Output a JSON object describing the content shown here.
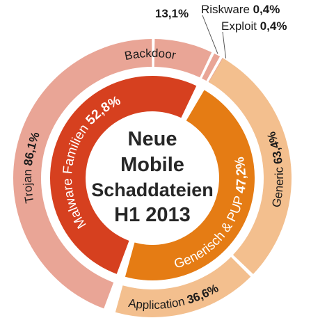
{
  "colors": {
    "inner_malware": "#d6401f",
    "inner_generisch": "#e57c14",
    "outer_malware": "#e9a596",
    "outer_generisch": "#f3bf8e",
    "center_text": "#262626",
    "inner_label": "#ffffff",
    "outer_label": "#1a1a1a"
  },
  "chart_data": {
    "type": "pie",
    "center_text": [
      "Neue",
      "Mobile",
      "Schaddateien",
      "H1 2013"
    ],
    "inner_ring": [
      {
        "name": "Malware Familien",
        "value_label": "52,8%",
        "value": 52.8
      },
      {
        "name": "Generisch & PUP",
        "value_label": "47,2%",
        "value": 47.2
      }
    ],
    "outer_ring": [
      {
        "parent": "Malware Familien",
        "name": "Trojan",
        "value_label": "86,1%",
        "value": 86.1
      },
      {
        "parent": "Malware Familien",
        "name": "Backdoor",
        "value_label": "13,1%",
        "value": 13.1
      },
      {
        "parent": "Malware Familien",
        "name": "Riskware",
        "value_label": "0,4%",
        "value": 0.4
      },
      {
        "parent": "Malware Familien",
        "name": "Exploit",
        "value_label": "0,4%",
        "value": 0.4
      },
      {
        "parent": "Generisch & PUP",
        "name": "Generic",
        "value_label": "63,4%",
        "value": 63.4
      },
      {
        "parent": "Generisch & PUP",
        "name": "Application",
        "value_label": "36,6%",
        "value": 36.6
      }
    ]
  }
}
